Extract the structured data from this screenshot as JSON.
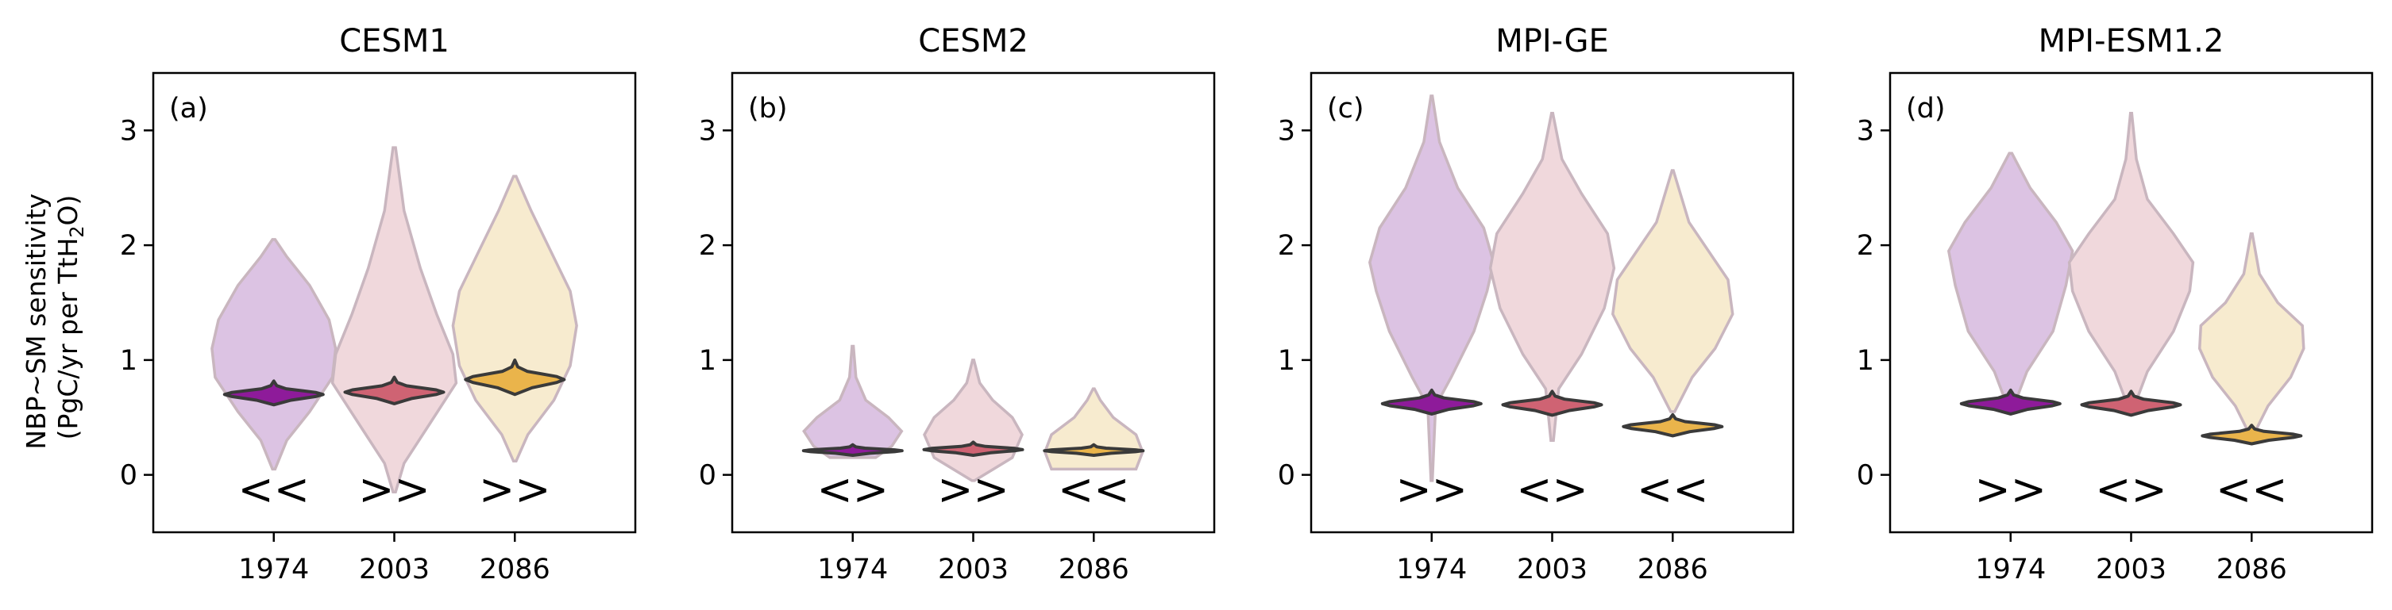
{
  "figure": {
    "ylabel_line1": "NBP~SM sensitivity",
    "ylabel_line2_prefix": "(PgC/yr per TtH",
    "ylabel_line2_sub": "2",
    "ylabel_line2_suffix": "O)"
  },
  "chart_data": [
    {
      "type": "violin",
      "title": "CESM1",
      "panel_label": "(a)",
      "categories": [
        "1974",
        "2003",
        "2086"
      ],
      "ylim": [
        -0.5,
        3.5
      ],
      "yticks": [
        "0",
        "1",
        "2",
        "3"
      ],
      "colors": [
        "#8e1b9a",
        "#cf6373",
        "#eab44b"
      ],
      "light_colors": [
        "#dcc3e3",
        "#f0d8dc",
        "#f7ebcf"
      ],
      "markers": [
        "<<",
        ">>",
        ">>"
      ],
      "wide_violins": [
        {
          "min": 0.05,
          "max": 2.05,
          "profile": [
            [
              0.05,
              0.02
            ],
            [
              0.3,
              0.2
            ],
            [
              0.55,
              0.55
            ],
            [
              0.85,
              0.9
            ],
            [
              1.1,
              0.95
            ],
            [
              1.35,
              0.85
            ],
            [
              1.65,
              0.55
            ],
            [
              1.9,
              0.2
            ],
            [
              2.05,
              0.02
            ]
          ]
        },
        {
          "min": -0.15,
          "max": 2.85,
          "profile": [
            [
              -0.15,
              0.02
            ],
            [
              0.1,
              0.15
            ],
            [
              0.45,
              0.55
            ],
            [
              0.8,
              0.95
            ],
            [
              1.05,
              0.9
            ],
            [
              1.4,
              0.65
            ],
            [
              1.8,
              0.4
            ],
            [
              2.3,
              0.15
            ],
            [
              2.85,
              0.02
            ]
          ]
        },
        {
          "min": 0.12,
          "max": 2.6,
          "profile": [
            [
              0.12,
              0.02
            ],
            [
              0.35,
              0.2
            ],
            [
              0.65,
              0.6
            ],
            [
              0.95,
              0.85
            ],
            [
              1.3,
              0.95
            ],
            [
              1.6,
              0.85
            ],
            [
              1.95,
              0.55
            ],
            [
              2.3,
              0.25
            ],
            [
              2.6,
              0.02
            ]
          ]
        }
      ],
      "narrow_violins": [
        {
          "center": 0.7,
          "spread": 0.09
        },
        {
          "center": 0.72,
          "spread": 0.1
        },
        {
          "center": 0.83,
          "spread": 0.13
        }
      ]
    },
    {
      "type": "violin",
      "title": "CESM2",
      "panel_label": "(b)",
      "categories": [
        "1974",
        "2003",
        "2086"
      ],
      "ylim": [
        -0.5,
        3.5
      ],
      "yticks": [
        "0",
        "1",
        "2",
        "3"
      ],
      "colors": [
        "#8e1b9a",
        "#cf6373",
        "#eab44b"
      ],
      "light_colors": [
        "#dcc3e3",
        "#f0d8dc",
        "#f7ebcf"
      ],
      "markers": [
        "<>",
        ">>",
        "<<"
      ],
      "wide_violins": [
        {
          "min": 0.15,
          "max": 1.12,
          "profile": [
            [
              0.15,
              0.35
            ],
            [
              0.25,
              0.6
            ],
            [
              0.38,
              0.75
            ],
            [
              0.5,
              0.55
            ],
            [
              0.65,
              0.2
            ],
            [
              0.85,
              0.05
            ],
            [
              1.12,
              0.01
            ]
          ]
        },
        {
          "min": -0.05,
          "max": 1.0,
          "profile": [
            [
              -0.05,
              0.02
            ],
            [
              0.15,
              0.6
            ],
            [
              0.35,
              0.75
            ],
            [
              0.5,
              0.6
            ],
            [
              0.65,
              0.3
            ],
            [
              0.8,
              0.1
            ],
            [
              1.0,
              0.01
            ]
          ]
        },
        {
          "min": 0.05,
          "max": 0.75,
          "profile": [
            [
              0.05,
              0.65
            ],
            [
              0.2,
              0.75
            ],
            [
              0.35,
              0.65
            ],
            [
              0.5,
              0.3
            ],
            [
              0.65,
              0.1
            ],
            [
              0.75,
              0.01
            ]
          ]
        }
      ],
      "narrow_violins": [
        {
          "center": 0.21,
          "spread": 0.04
        },
        {
          "center": 0.22,
          "spread": 0.05
        },
        {
          "center": 0.21,
          "spread": 0.04
        }
      ]
    },
    {
      "type": "violin",
      "title": "MPI-GE",
      "panel_label": "(c)",
      "categories": [
        "1974",
        "2003",
        "2086"
      ],
      "ylim": [
        -0.5,
        3.5
      ],
      "yticks": [
        "0",
        "1",
        "2",
        "3"
      ],
      "colors": [
        "#8e1b9a",
        "#cf6373",
        "#eab44b"
      ],
      "light_colors": [
        "#dcc3e3",
        "#f0d8dc",
        "#f7ebcf"
      ],
      "markers": [
        ">>",
        "<>",
        "<<"
      ],
      "wide_violins": [
        {
          "min": -0.05,
          "max": 3.3,
          "profile": [
            [
              -0.05,
              0.01
            ],
            [
              0.6,
              0.06
            ],
            [
              0.85,
              0.3
            ],
            [
              1.25,
              0.65
            ],
            [
              1.6,
              0.85
            ],
            [
              1.85,
              0.95
            ],
            [
              2.15,
              0.8
            ],
            [
              2.5,
              0.4
            ],
            [
              2.9,
              0.12
            ],
            [
              3.3,
              0.01
            ]
          ]
        },
        {
          "min": 0.3,
          "max": 3.15,
          "profile": [
            [
              0.3,
              0.02
            ],
            [
              0.75,
              0.1
            ],
            [
              1.05,
              0.45
            ],
            [
              1.45,
              0.8
            ],
            [
              1.8,
              0.95
            ],
            [
              2.1,
              0.85
            ],
            [
              2.45,
              0.45
            ],
            [
              2.75,
              0.15
            ],
            [
              3.15,
              0.01
            ]
          ]
        },
        {
          "min": 0.55,
          "max": 2.65,
          "profile": [
            [
              0.55,
              0.03
            ],
            [
              0.85,
              0.3
            ],
            [
              1.1,
              0.65
            ],
            [
              1.4,
              0.92
            ],
            [
              1.7,
              0.85
            ],
            [
              1.95,
              0.55
            ],
            [
              2.2,
              0.25
            ],
            [
              2.65,
              0.01
            ]
          ]
        }
      ],
      "narrow_violins": [
        {
          "center": 0.62,
          "spread": 0.09
        },
        {
          "center": 0.61,
          "spread": 0.09
        },
        {
          "center": 0.42,
          "spread": 0.08
        }
      ]
    },
    {
      "type": "violin",
      "title": "MPI-ESM1.2",
      "panel_label": "(d)",
      "categories": [
        "1974",
        "2003",
        "2086"
      ],
      "ylim": [
        -0.5,
        3.5
      ],
      "yticks": [
        "0",
        "1",
        "2",
        "3"
      ],
      "colors": [
        "#8e1b9a",
        "#cf6373",
        "#eab44b"
      ],
      "light_colors": [
        "#dcc3e3",
        "#f0d8dc",
        "#f7ebcf"
      ],
      "markers": [
        ">>",
        "<>",
        "<<"
      ],
      "wide_violins": [
        {
          "min": 0.6,
          "max": 2.8,
          "profile": [
            [
              0.6,
              0.05
            ],
            [
              0.9,
              0.25
            ],
            [
              1.25,
              0.65
            ],
            [
              1.65,
              0.85
            ],
            [
              1.95,
              0.95
            ],
            [
              2.2,
              0.7
            ],
            [
              2.5,
              0.3
            ],
            [
              2.8,
              0.02
            ]
          ]
        },
        {
          "min": 0.6,
          "max": 3.15,
          "profile": [
            [
              0.6,
              0.05
            ],
            [
              0.9,
              0.25
            ],
            [
              1.25,
              0.65
            ],
            [
              1.6,
              0.9
            ],
            [
              1.85,
              0.95
            ],
            [
              2.1,
              0.65
            ],
            [
              2.4,
              0.25
            ],
            [
              2.75,
              0.08
            ],
            [
              3.15,
              0.01
            ]
          ]
        },
        {
          "min": 0.35,
          "max": 2.1,
          "profile": [
            [
              0.35,
              0.03
            ],
            [
              0.6,
              0.25
            ],
            [
              0.85,
              0.6
            ],
            [
              1.1,
              0.8
            ],
            [
              1.3,
              0.78
            ],
            [
              1.5,
              0.4
            ],
            [
              1.75,
              0.12
            ],
            [
              2.1,
              0.01
            ]
          ]
        }
      ],
      "narrow_violins": [
        {
          "center": 0.62,
          "spread": 0.09
        },
        {
          "center": 0.61,
          "spread": 0.09
        },
        {
          "center": 0.34,
          "spread": 0.07
        }
      ]
    }
  ]
}
